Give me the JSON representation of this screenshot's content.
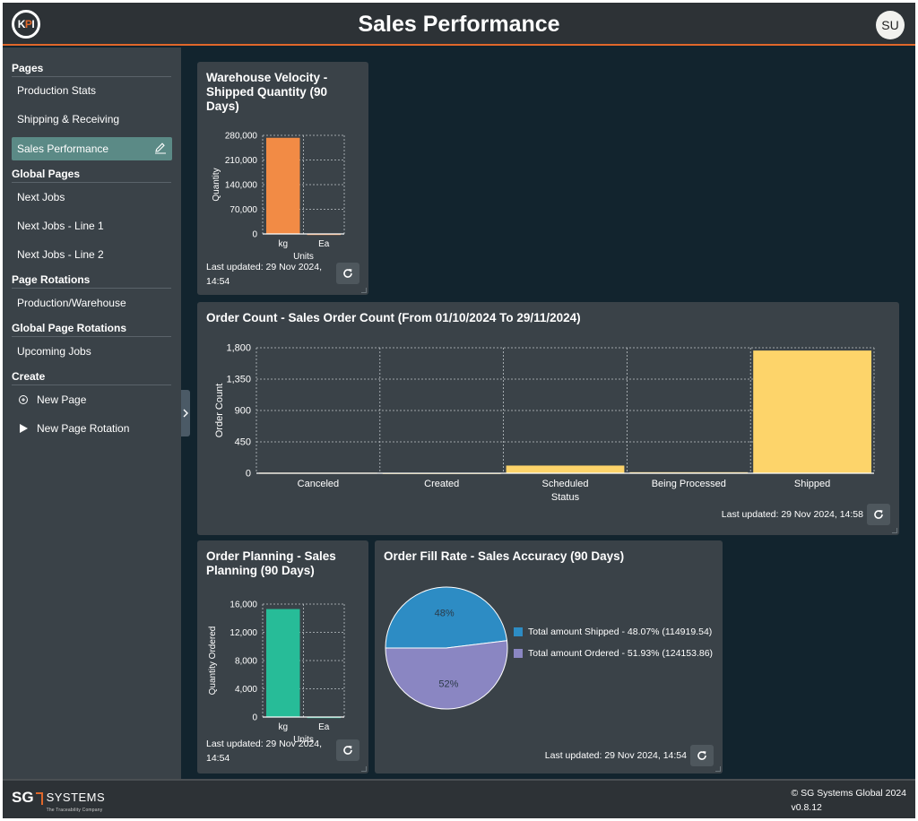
{
  "app": {
    "title": "Sales Performance",
    "logo_text": "KPI",
    "user_initials": "SU"
  },
  "sidebar": {
    "sections": [
      {
        "title": "Pages",
        "items": [
          "Production Stats",
          "Shipping & Receiving",
          "Sales Performance"
        ]
      },
      {
        "title": "Global Pages",
        "items": [
          "Next Jobs",
          "Next Jobs - Line 1",
          "Next Jobs - Line 2"
        ]
      },
      {
        "title": "Page Rotations",
        "items": [
          "Production/Warehouse"
        ]
      },
      {
        "title": "Global Page Rotations",
        "items": [
          "Upcoming Jobs"
        ]
      },
      {
        "title": "Create",
        "items": [
          "New Page",
          "New Page Rotation"
        ]
      }
    ],
    "active_item": "Sales Performance"
  },
  "cards": {
    "warehouse": {
      "title": "Warehouse Velocity - Shipped Quantity (90 Days)",
      "updated": "Last updated: 29 Nov 2024, 14:54"
    },
    "order_count": {
      "title": "Order Count - Sales Order Count (From 01/10/2024 To 29/11/2024)",
      "updated": "Last updated: 29 Nov 2024, 14:58"
    },
    "order_planning": {
      "title": "Order Planning - Sales Planning (90 Days)",
      "updated": "Last updated: 29 Nov 2024, 14:54"
    },
    "fill_rate": {
      "title": "Order Fill Rate - Sales Accuracy (90 Days)",
      "updated": "Last updated: 29 Nov 2024, 14:54"
    }
  },
  "chart_data": [
    {
      "id": "warehouse",
      "type": "bar",
      "categories": [
        "kg",
        "Ea"
      ],
      "values": [
        273000,
        0
      ],
      "xlabel": "Units",
      "ylabel": "Quantity",
      "ylim": [
        0,
        280000
      ],
      "yticks": [
        "0",
        "70,000",
        "140,000",
        "210,000",
        "280,000"
      ],
      "color": "#f28b45",
      "grid": true
    },
    {
      "id": "order_count",
      "type": "bar",
      "categories": [
        "Canceled",
        "Created",
        "Scheduled",
        "Being Processed",
        "Shipped"
      ],
      "values": [
        8,
        5,
        110,
        15,
        1760
      ],
      "xlabel": "Status",
      "ylabel": "Order Count",
      "ylim": [
        0,
        1800
      ],
      "yticks": [
        "0",
        "450",
        "900",
        "1,350",
        "1,800"
      ],
      "color": "#fdd46a",
      "grid": true
    },
    {
      "id": "order_planning",
      "type": "bar",
      "categories": [
        "kg",
        "Ea"
      ],
      "values": [
        15300,
        0
      ],
      "xlabel": "Units",
      "ylabel": "Quantity Ordered",
      "ylim": [
        0,
        16000
      ],
      "yticks": [
        "0",
        "4,000",
        "8,000",
        "12,000",
        "16,000"
      ],
      "color": "#27bc98",
      "grid": true
    },
    {
      "id": "fill_rate",
      "type": "pie",
      "slices": [
        {
          "label": "Total amount Shipped - 48.07% (114919.54)",
          "value": 48.07,
          "pct_label": "48%",
          "color": "#2d8cc4"
        },
        {
          "label": "Total amount Ordered - 51.93% (124153.86)",
          "value": 51.93,
          "pct_label": "52%",
          "color": "#8a86c2"
        }
      ],
      "legend": "right"
    }
  ],
  "footer": {
    "logo_sg": "SG",
    "logo_systems": "SYSTEMS",
    "logo_tagline": "The Traceability Company",
    "copyright": "© SG Systems Global 2024",
    "version": "v0.8.12"
  }
}
